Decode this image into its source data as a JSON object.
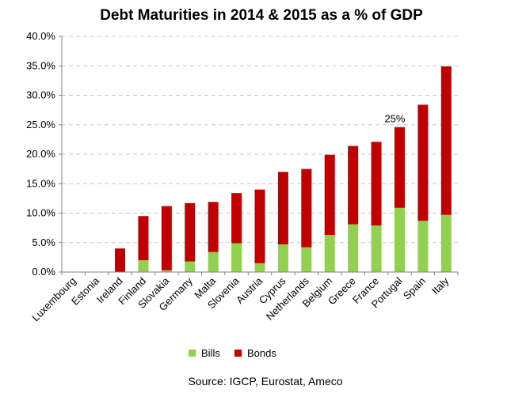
{
  "chart_data": {
    "type": "bar",
    "stacked": true,
    "title": "Debt Maturities in 2014 & 2015 as a % of GDP",
    "categories": [
      "Luxembourg",
      "Estonia",
      "Ireland",
      "Finland",
      "Slovakia",
      "Germany",
      "Malta",
      "Slovenia",
      "Austria",
      "Cyprus",
      "Netherlands",
      "Belgium",
      "Greece",
      "France",
      "Portugal",
      "Spain",
      "Italy"
    ],
    "series": [
      {
        "name": "Bills",
        "color": "#92d050",
        "values": [
          0,
          0,
          0,
          2.0,
          0.3,
          1.8,
          3.4,
          4.9,
          1.5,
          4.7,
          4.2,
          6.3,
          8.1,
          7.9,
          10.9,
          8.7,
          9.7
        ]
      },
      {
        "name": "Bonds",
        "color": "#c00000",
        "values": [
          0,
          0,
          4.0,
          7.5,
          10.9,
          9.9,
          8.5,
          8.5,
          12.5,
          12.3,
          13.3,
          13.6,
          13.3,
          14.2,
          13.7,
          19.7,
          25.2
        ]
      }
    ],
    "ylim": [
      0,
      40
    ],
    "yticks": [
      0,
      5,
      10,
      15,
      20,
      25,
      30,
      35,
      40
    ],
    "ytick_labels": [
      "0.0%",
      "5.0%",
      "10.0%",
      "15.0%",
      "20.0%",
      "25.0%",
      "30.0%",
      "35.0%",
      "40.0%"
    ],
    "grid": true,
    "legend": "bottom",
    "annotations": [
      {
        "category": "Portugal",
        "text": "25%"
      }
    ],
    "source": "Source: IGCP, Eurostat, Ameco"
  }
}
